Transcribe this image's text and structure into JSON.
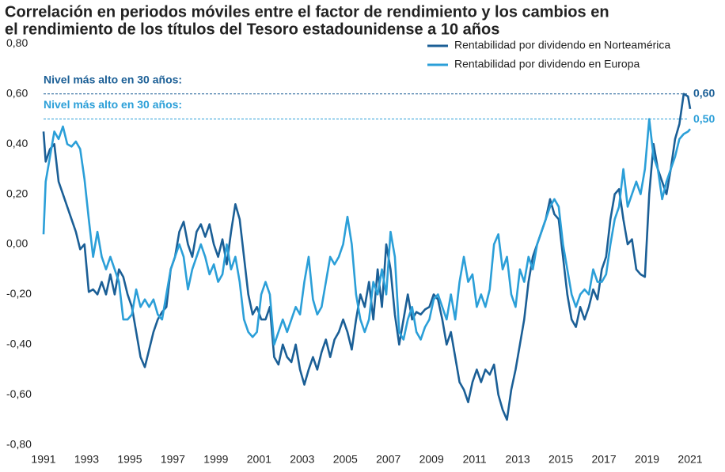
{
  "chart_data": {
    "type": "line",
    "title": [
      "Correlación en periodos móviles entre el factor de rendimiento y los cambios en",
      "el rendimiento de los títulos del Tesoro estadounidense a 10 años"
    ],
    "x": [
      1991,
      1991.1,
      1991.3,
      1991.5,
      1991.7,
      1991.9,
      1992.1,
      1992.3,
      1992.5,
      1992.7,
      1992.9,
      1993.1,
      1993.3,
      1993.5,
      1993.7,
      1993.9,
      1994.1,
      1994.3,
      1994.5,
      1994.7,
      1994.9,
      1995.1,
      1995.3,
      1995.5,
      1995.7,
      1995.9,
      1996.1,
      1996.3,
      1996.5,
      1996.7,
      1996.9,
      1997.1,
      1997.3,
      1997.5,
      1997.7,
      1997.9,
      1998.1,
      1998.3,
      1998.5,
      1998.7,
      1998.9,
      1999.1,
      1999.3,
      1999.5,
      1999.7,
      1999.9,
      2000.1,
      2000.3,
      2000.5,
      2000.7,
      2000.9,
      2001.1,
      2001.3,
      2001.5,
      2001.7,
      2001.9,
      2002.1,
      2002.3,
      2002.5,
      2002.7,
      2002.9,
      2003.1,
      2003.3,
      2003.5,
      2003.7,
      2003.9,
      2004.1,
      2004.3,
      2004.5,
      2004.7,
      2004.9,
      2005.1,
      2005.3,
      2005.5,
      2005.7,
      2005.9,
      2006.1,
      2006.3,
      2006.5,
      2006.7,
      2006.9,
      2007.1,
      2007.3,
      2007.5,
      2007.7,
      2007.9,
      2008.1,
      2008.3,
      2008.5,
      2008.7,
      2008.9,
      2009.1,
      2009.3,
      2009.5,
      2009.7,
      2009.9,
      2010.1,
      2010.3,
      2010.5,
      2010.7,
      2010.9,
      2011.1,
      2011.3,
      2011.5,
      2011.7,
      2011.9,
      2012.1,
      2012.3,
      2012.5,
      2012.7,
      2012.9,
      2013.1,
      2013.3,
      2013.5,
      2013.7,
      2013.9,
      2014.1,
      2014.3,
      2014.5,
      2014.7,
      2014.9,
      2015.1,
      2015.3,
      2015.5,
      2015.7,
      2015.9,
      2016.1,
      2016.3,
      2016.5,
      2016.7,
      2016.9,
      2017.1,
      2017.3,
      2017.5,
      2017.7,
      2017.9,
      2018.1,
      2018.3,
      2018.5,
      2018.7,
      2018.9,
      2019.1,
      2019.3,
      2019.5,
      2019.7,
      2019.9,
      2020.1,
      2020.3,
      2020.5,
      2020.7,
      2020.9,
      2021
    ],
    "series": [
      {
        "name": "Rentabilidad por dividendo en Norteamérica",
        "color": "#1b5f96",
        "values": [
          0.45,
          0.33,
          0.38,
          0.4,
          0.25,
          0.2,
          0.15,
          0.1,
          0.05,
          -0.02,
          0.0,
          -0.19,
          -0.18,
          -0.2,
          -0.15,
          -0.2,
          -0.12,
          -0.2,
          -0.1,
          -0.13,
          -0.2,
          -0.25,
          -0.35,
          -0.45,
          -0.49,
          -0.42,
          -0.35,
          -0.3,
          -0.27,
          -0.25,
          -0.1,
          -0.05,
          0.05,
          0.09,
          0.0,
          -0.05,
          0.05,
          0.08,
          0.03,
          0.08,
          0.0,
          -0.05,
          0.02,
          -0.08,
          0.05,
          0.16,
          0.1,
          -0.05,
          -0.2,
          -0.28,
          -0.25,
          -0.3,
          -0.3,
          -0.25,
          -0.45,
          -0.48,
          -0.4,
          -0.45,
          -0.47,
          -0.4,
          -0.5,
          -0.56,
          -0.5,
          -0.45,
          -0.5,
          -0.43,
          -0.38,
          -0.45,
          -0.38,
          -0.35,
          -0.3,
          -0.35,
          -0.42,
          -0.3,
          -0.2,
          -0.25,
          -0.15,
          -0.3,
          -0.1,
          -0.25,
          0.0,
          -0.1,
          -0.28,
          -0.4,
          -0.3,
          -0.2,
          -0.3,
          -0.27,
          -0.28,
          -0.26,
          -0.25,
          -0.2,
          -0.22,
          -0.3,
          -0.4,
          -0.35,
          -0.45,
          -0.55,
          -0.58,
          -0.63,
          -0.55,
          -0.5,
          -0.55,
          -0.5,
          -0.52,
          -0.48,
          -0.6,
          -0.66,
          -0.7,
          -0.58,
          -0.5,
          -0.4,
          -0.3,
          -0.15,
          -0.05,
          0.0,
          0.05,
          0.1,
          0.18,
          0.12,
          0.1,
          -0.05,
          -0.2,
          -0.3,
          -0.33,
          -0.25,
          -0.3,
          -0.25,
          -0.18,
          -0.22,
          -0.1,
          -0.05,
          0.1,
          0.2,
          0.22,
          0.1,
          0.0,
          0.02,
          -0.1,
          -0.12,
          -0.13,
          0.2,
          0.4,
          0.3,
          0.25,
          0.2,
          0.3,
          0.42,
          0.48,
          0.6,
          0.59,
          0.54
        ]
      },
      {
        "name": "Rentabilidad por dividendo en Europa",
        "color": "#2b9fd8",
        "values": [
          0.04,
          0.25,
          0.35,
          0.45,
          0.42,
          0.47,
          0.4,
          0.39,
          0.41,
          0.38,
          0.26,
          0.1,
          -0.05,
          0.05,
          -0.05,
          -0.1,
          -0.05,
          -0.1,
          -0.15,
          -0.3,
          -0.3,
          -0.28,
          -0.18,
          -0.25,
          -0.22,
          -0.25,
          -0.22,
          -0.28,
          -0.3,
          -0.2,
          -0.1,
          -0.05,
          0.0,
          -0.05,
          -0.18,
          -0.1,
          -0.05,
          0.0,
          -0.05,
          -0.12,
          -0.08,
          -0.15,
          -0.12,
          0.0,
          -0.1,
          -0.05,
          -0.15,
          -0.3,
          -0.35,
          -0.37,
          -0.35,
          -0.2,
          -0.15,
          -0.2,
          -0.4,
          -0.35,
          -0.3,
          -0.35,
          -0.3,
          -0.25,
          -0.28,
          -0.15,
          -0.05,
          -0.22,
          -0.28,
          -0.25,
          -0.15,
          -0.05,
          -0.08,
          -0.05,
          0.0,
          0.11,
          0.0,
          -0.2,
          -0.3,
          -0.35,
          -0.3,
          -0.15,
          -0.2,
          -0.1,
          -0.2,
          0.05,
          -0.05,
          -0.35,
          -0.38,
          -0.3,
          -0.25,
          -0.35,
          -0.38,
          -0.33,
          -0.3,
          -0.22,
          -0.2,
          -0.25,
          -0.3,
          -0.2,
          -0.3,
          -0.15,
          -0.05,
          -0.15,
          -0.12,
          -0.25,
          -0.2,
          -0.25,
          -0.18,
          0.0,
          0.04,
          -0.1,
          -0.05,
          -0.2,
          -0.25,
          -0.1,
          -0.15,
          -0.05,
          -0.1,
          0.0,
          0.05,
          0.1,
          0.15,
          0.18,
          0.15,
          0.0,
          -0.1,
          -0.2,
          -0.25,
          -0.2,
          -0.18,
          -0.2,
          -0.1,
          -0.15,
          -0.15,
          -0.12,
          0.0,
          0.1,
          0.15,
          0.3,
          0.15,
          0.2,
          0.25,
          0.2,
          0.3,
          0.5,
          0.35,
          0.3,
          0.18,
          0.25,
          0.3,
          0.35,
          0.42,
          0.44,
          0.45,
          0.46
        ]
      }
    ],
    "xlim": [
      1991,
      2021
    ],
    "xticks": [
      1991,
      1993,
      1995,
      1997,
      1999,
      2001,
      2003,
      2005,
      2007,
      2009,
      2011,
      2013,
      2015,
      2017,
      2019,
      2021
    ],
    "ylim": [
      -0.8,
      0.8
    ],
    "yticks": [
      {
        "value": -0.8,
        "label": "-0,80"
      },
      {
        "value": -0.6,
        "label": "-0,60"
      },
      {
        "value": -0.4,
        "label": "-0,40"
      },
      {
        "value": -0.2,
        "label": "-0,20"
      },
      {
        "value": 0,
        "label": "0,00"
      },
      {
        "value": 0.2,
        "label": "0,20"
      },
      {
        "value": 0.4,
        "label": "0,40"
      },
      {
        "value": 0.6,
        "label": "0,60"
      },
      {
        "value": 0.8,
        "label": "0,80"
      }
    ],
    "grid": false,
    "legend": "upper right",
    "reference_lines": [
      {
        "value": 0.6,
        "label": "0,60",
        "note": "Nivel más alto en 30 años:",
        "color": "#1b5f96"
      },
      {
        "value": 0.5,
        "label": "0,50",
        "note": "Nivel más alto en 30 años:",
        "color": "#2b9fd8"
      }
    ]
  }
}
